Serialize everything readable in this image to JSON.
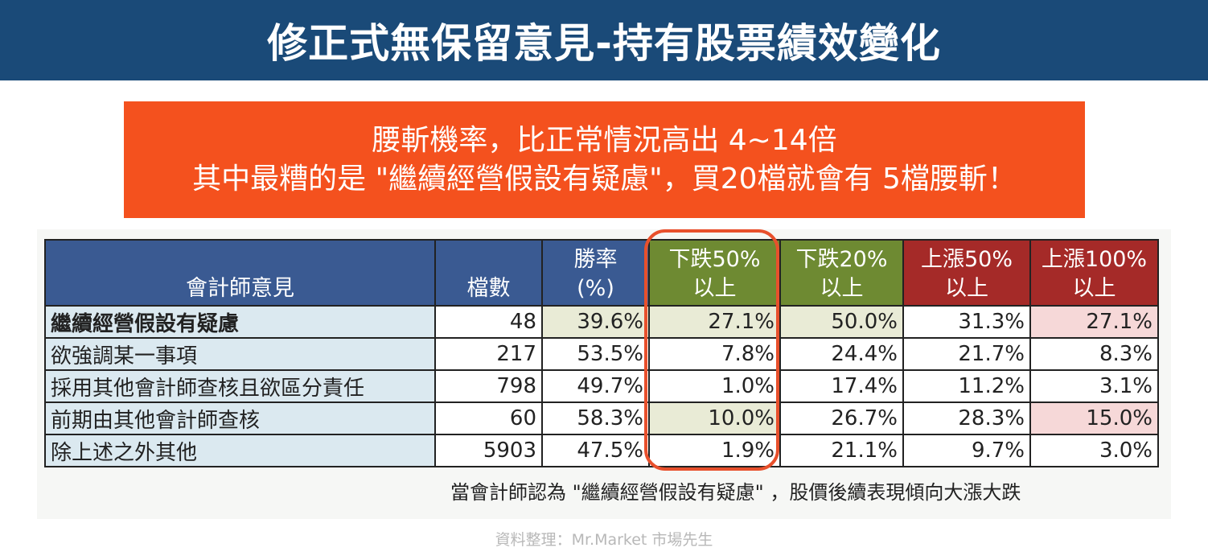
{
  "title": "修正式無保留意見-持有股票績效變化",
  "banner": {
    "line1": "腰斬機率，比正常情況高出 4~14倍",
    "line2": "其中最糟的是 \"繼續經營假設有疑慮\"，買20檔就會有 5檔腰斬！"
  },
  "table": {
    "headers": {
      "opinion": "會計師意見",
      "count": "檔數",
      "win_rate_1": "勝率",
      "win_rate_2": "(%)",
      "drop50_1": "下跌50%",
      "drop50_2": "以上",
      "drop20_1": "下跌20%",
      "drop20_2": "以上",
      "rise50_1": "上漲50%",
      "rise50_2": "以上",
      "rise100_1": "上漲100%",
      "rise100_2": "以上"
    },
    "rows": [
      {
        "label": "繼續經營假設有疑慮",
        "count": "48",
        "win": "39.6%",
        "drop50": "27.1%",
        "drop20": "50.0%",
        "rise50": "31.3%",
        "rise100": "27.1%"
      },
      {
        "label": "欲強調某一事項",
        "count": "217",
        "win": "53.5%",
        "drop50": "7.8%",
        "drop20": "24.4%",
        "rise50": "21.7%",
        "rise100": "8.3%"
      },
      {
        "label": "採用其他會計師查核且欲區分責任",
        "count": "798",
        "win": "49.7%",
        "drop50": "1.0%",
        "drop20": "17.4%",
        "rise50": "11.2%",
        "rise100": "3.1%"
      },
      {
        "label": "前期由其他會計師查核",
        "count": "60",
        "win": "58.3%",
        "drop50": "10.0%",
        "drop20": "26.7%",
        "rise50": "28.3%",
        "rise100": "15.0%"
      },
      {
        "label": "除上述之外其他",
        "count": "5903",
        "win": "47.5%",
        "drop50": "1.9%",
        "drop20": "21.1%",
        "rise50": "9.7%",
        "rise100": "3.0%"
      }
    ]
  },
  "note": "當會計師認為 \"繼續經營假設有疑慮\" ，股價後續表現傾向大漲大跌",
  "source": "資料整理：Mr.Market 市場先生",
  "colors": {
    "title_bg": "#1a4a78",
    "banner_bg": "#f4511e",
    "header_blue": "#3a5a92",
    "header_green": "#6e8a32",
    "header_red": "#a52a28",
    "label_bg": "#dbe9f0",
    "highlight_oval": "#e8502c"
  }
}
